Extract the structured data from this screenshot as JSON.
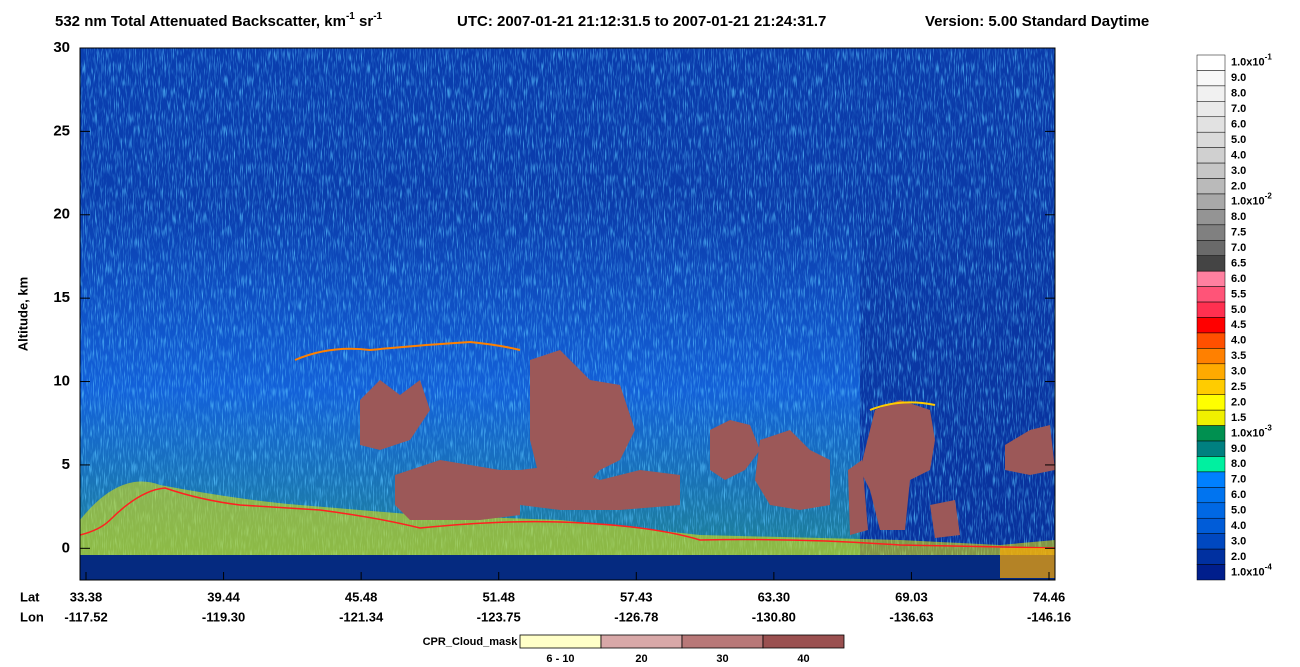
{
  "chart_data": {
    "type": "heatmap",
    "title": "532 nm Total Attenuated Backscatter, km",
    "title_sup1": "-1",
    "title_mid": " sr",
    "title_sup2": "-1",
    "title_time": "UTC:  2007-01-21 21:12:31.5  to  2007-01-21 21:24:31.7",
    "title_version": "Version: 5.00  Standard  Daytime",
    "ylabel": "Altitude, km",
    "ylim": [
      -1.9,
      30
    ],
    "yticks": [
      0,
      5,
      10,
      15,
      20,
      25,
      30
    ],
    "lat_label": "Lat",
    "lon_label": "Lon",
    "lat": [
      "33.38",
      "39.44",
      "45.48",
      "51.48",
      "57.43",
      "63.30",
      "69.03",
      "74.46"
    ],
    "lon": [
      "-117.52",
      "-119.30",
      "-121.34",
      "-123.75",
      "-126.78",
      "-130.80",
      "-136.63",
      "-146.16"
    ],
    "colorbar": [
      {
        "label": "1.0x10",
        "sup": "-1",
        "color": "#ffffff"
      },
      {
        "label": "9.0",
        "color": "#f8f8f8"
      },
      {
        "label": "8.0",
        "color": "#f1f1f1"
      },
      {
        "label": "7.0",
        "color": "#eaeaea"
      },
      {
        "label": "6.0",
        "color": "#e2e2e2"
      },
      {
        "label": "5.0",
        "color": "#dadada"
      },
      {
        "label": "4.0",
        "color": "#d0d0d0"
      },
      {
        "label": "3.0",
        "color": "#c6c6c6"
      },
      {
        "label": "2.0",
        "color": "#bababa"
      },
      {
        "label": "1.0x10",
        "sup": "-2",
        "color": "#a8a8a8"
      },
      {
        "label": "8.0",
        "color": "#949494"
      },
      {
        "label": "7.5",
        "color": "#808080"
      },
      {
        "label": "7.0",
        "color": "#6a6a6a"
      },
      {
        "label": "6.5",
        "color": "#444444"
      },
      {
        "label": "6.0",
        "color": "#ff80a0"
      },
      {
        "label": "5.5",
        "color": "#ff5478"
      },
      {
        "label": "5.0",
        "color": "#ff3050"
      },
      {
        "label": "4.5",
        "color": "#ff0000"
      },
      {
        "label": "4.0",
        "color": "#ff5000"
      },
      {
        "label": "3.5",
        "color": "#ff8000"
      },
      {
        "label": "3.0",
        "color": "#ffaa00"
      },
      {
        "label": "2.5",
        "color": "#ffcc00"
      },
      {
        "label": "2.0",
        "color": "#ffff00"
      },
      {
        "label": "1.5",
        "color": "#f0f000"
      },
      {
        "label": "1.0x10",
        "sup": "-3",
        "color": "#009050"
      },
      {
        "label": "9.0",
        "color": "#008080"
      },
      {
        "label": "8.0",
        "color": "#00f0a0"
      },
      {
        "label": "7.0",
        "color": "#0080ff"
      },
      {
        "label": "6.0",
        "color": "#0074f0"
      },
      {
        "label": "5.0",
        "color": "#0068e4"
      },
      {
        "label": "4.0",
        "color": "#005cd8"
      },
      {
        "label": "3.0",
        "color": "#0048c0"
      },
      {
        "label": "2.0",
        "color": "#0030a0"
      },
      {
        "label": "1.0x10",
        "sup": "-4",
        "color": "#001e8c"
      }
    ],
    "cpr_label": "CPR_Cloud_mask",
    "cpr_bins": [
      {
        "label": "6 - 10",
        "color": "#ffffc8"
      },
      {
        "label": "20",
        "color": "#d8a8a8"
      },
      {
        "label": "30",
        "color": "#b87878"
      },
      {
        "label": "40",
        "color": "#9a5050"
      }
    ]
  }
}
